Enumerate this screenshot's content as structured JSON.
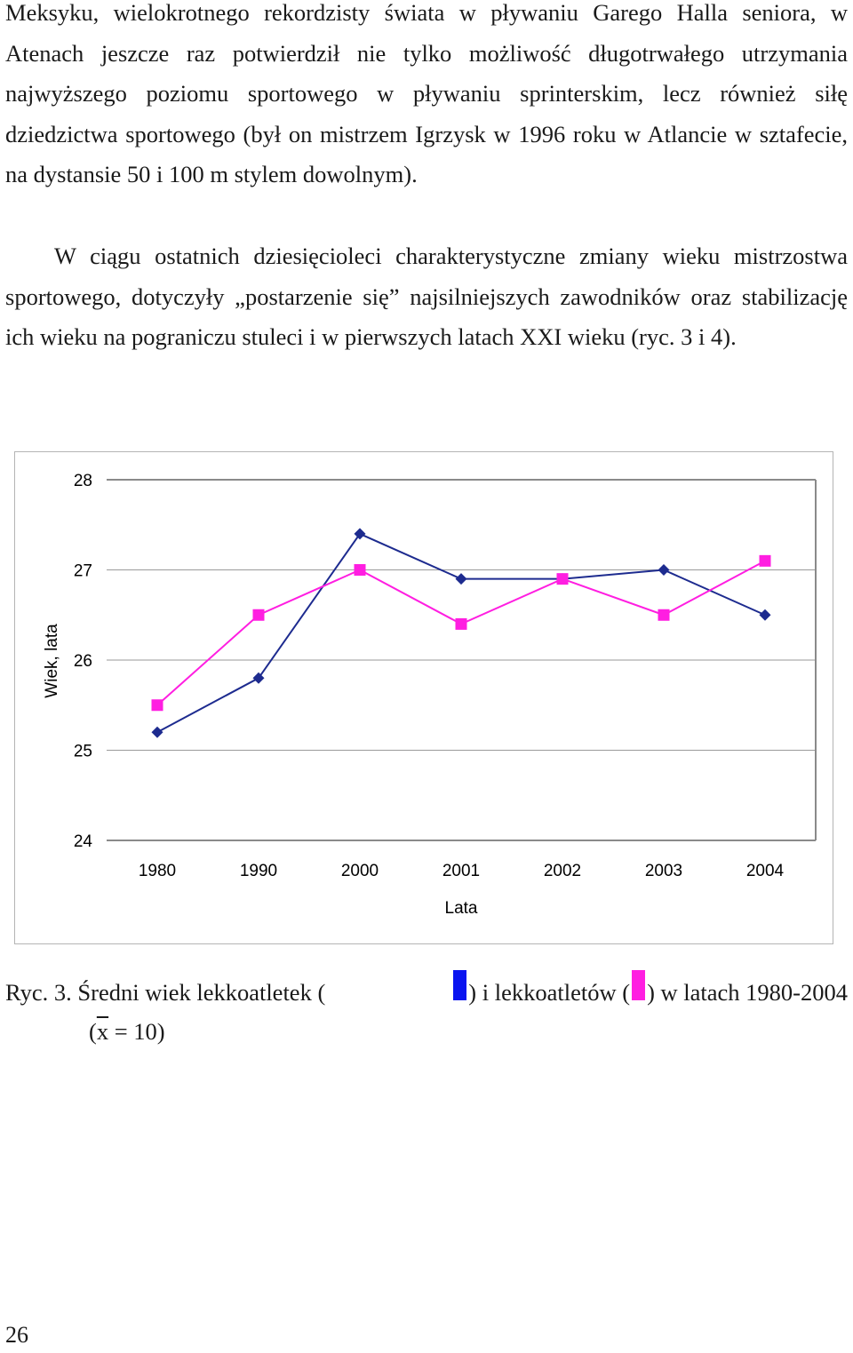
{
  "paragraphs": {
    "p1": "Meksyku, wielokrotnego rekordzisty świata w pływaniu Garego Halla seniora, w Atenach jeszcze raz potwierdził nie tylko możliwość długotrwałego utrzymania najwyższego poziomu sportowego w pływaniu sprinterskim, lecz również siłę dziedzictwa sportowego (był on mistrzem Igrzysk w 1996 roku w Atlancie w sztafecie, na dystansie 50 i 100 m stylem dowolnym).",
    "p2": "W ciągu ostatnich dziesięcioleci charakterystyczne zmiany wieku mistrzostwa sportowego, dotyczyły „postarzenie się” najsilniejszych zawodników oraz stabilizację ich wieku na pograniczu stuleci i w pierwszych latach XXI wieku (ryc. 3 i 4)."
  },
  "chart_data": {
    "type": "line",
    "categories": [
      "1980",
      "1990",
      "2000",
      "2001",
      "2002",
      "2003",
      "2004"
    ],
    "ylabel": "Wiek, lata",
    "xlabel": "Lata",
    "ylim": [
      24,
      28
    ],
    "yticks": [
      "24",
      "25",
      "26",
      "27",
      "28"
    ],
    "grid": "horizontal",
    "legend": "none",
    "series": [
      {
        "color": "#1d2b8f",
        "marker": "diamond",
        "values": [
          25.2,
          25.8,
          27.4,
          26.9,
          26.9,
          27.0,
          26.5
        ]
      },
      {
        "color": "#ff1ee1",
        "marker": "square",
        "values": [
          25.5,
          26.5,
          27.0,
          26.4,
          26.9,
          26.5,
          27.1
        ]
      }
    ]
  },
  "caption": {
    "prefix": "Ryc. 3. Średni wiek lekkoatletek (",
    "middle": ") i lekkoatletów (",
    "suffix": ") w latach 1980-2004",
    "swatch_female_color": "#0a14f0",
    "swatch_male_color": "#ff1ee1",
    "line2_open": "(",
    "xbar": "x",
    "line2_rest": " = 10)"
  },
  "page_number": "26"
}
